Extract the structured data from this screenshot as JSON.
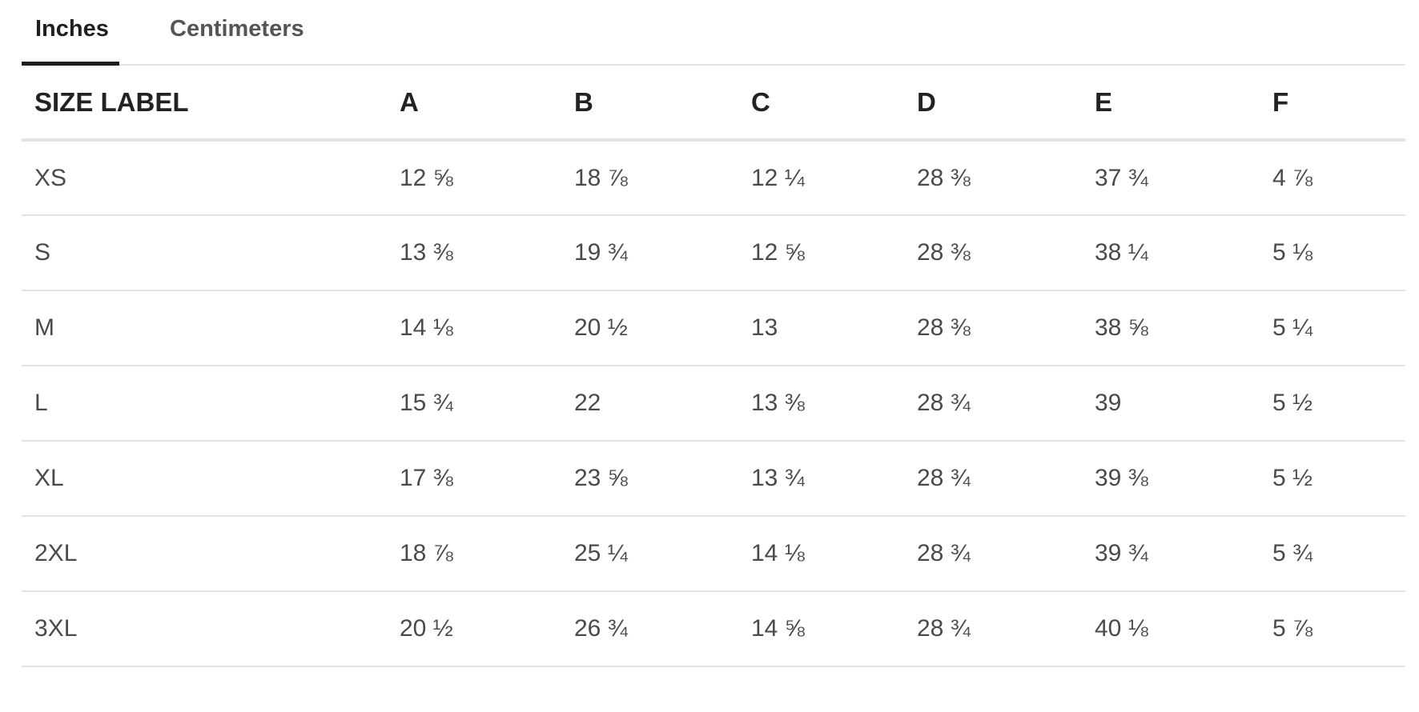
{
  "tabs": [
    {
      "label": "Inches",
      "selected": true
    },
    {
      "label": "Centimeters",
      "selected": false
    }
  ],
  "table": {
    "headers": [
      "SIZE LABEL",
      "A",
      "B",
      "C",
      "D",
      "E",
      "F"
    ],
    "rows": [
      [
        "XS",
        "12 ⅝",
        "18 ⅞",
        "12 ¼",
        "28 ⅜",
        "37 ¾",
        "4 ⅞"
      ],
      [
        "S",
        "13 ⅜",
        "19 ¾",
        "12 ⅝",
        "28 ⅜",
        "38 ¼",
        "5 ⅛"
      ],
      [
        "M",
        "14 ⅛",
        "20 ½",
        "13",
        "28 ⅜",
        "38 ⅝",
        "5 ¼"
      ],
      [
        "L",
        "15 ¾",
        "22",
        "13 ⅜",
        "28 ¾",
        "39",
        "5 ½"
      ],
      [
        "XL",
        "17 ⅜",
        "23 ⅝",
        "13 ¾",
        "28 ¾",
        "39 ⅜",
        "5 ½"
      ],
      [
        "2XL",
        "18 ⅞",
        "25 ¼",
        "14 ⅛",
        "28 ¾",
        "39 ¾",
        "5 ¾"
      ],
      [
        "3XL",
        "20 ½",
        "26 ¾",
        "14 ⅝",
        "28 ¾",
        "40 ⅛",
        "5 ⅞"
      ]
    ]
  }
}
